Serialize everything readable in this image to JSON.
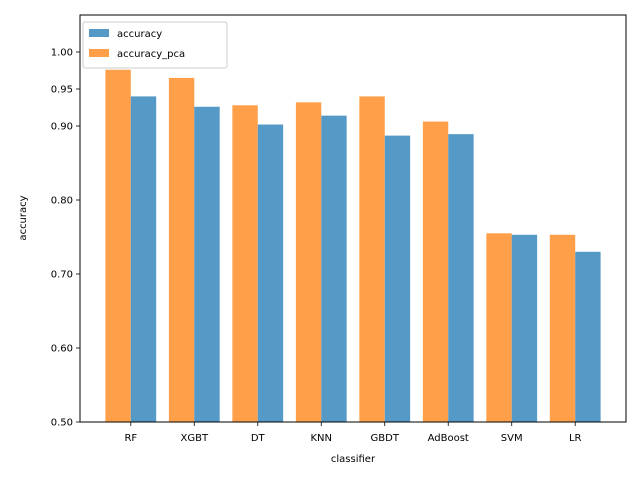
{
  "chart_data": {
    "type": "bar",
    "xlabel": "classifier",
    "ylabel": "accuracy",
    "ylim": [
      0.5,
      1.05
    ],
    "yticks": [
      "0.50",
      "0.60",
      "0.70",
      "0.80",
      "0.90",
      "0.95",
      "1.00"
    ],
    "ytick_values": [
      0.5,
      0.6,
      0.7,
      0.8,
      0.9,
      0.95,
      1.0
    ],
    "categories": [
      "RF",
      "XGBT",
      "DT",
      "KNN",
      "GBDT",
      "AdBoost",
      "SVM",
      "LR"
    ],
    "series": [
      {
        "name": "accuracy",
        "color": "#5599c7",
        "values": [
          0.94,
          0.926,
          0.902,
          0.914,
          0.887,
          0.889,
          0.753,
          0.73
        ]
      },
      {
        "name": "accuracy_pca",
        "color": "#ff9f4a",
        "values": [
          0.976,
          0.965,
          0.928,
          0.932,
          0.94,
          0.906,
          0.755,
          0.753
        ]
      }
    ],
    "legend": "top-left",
    "grid": false
  }
}
